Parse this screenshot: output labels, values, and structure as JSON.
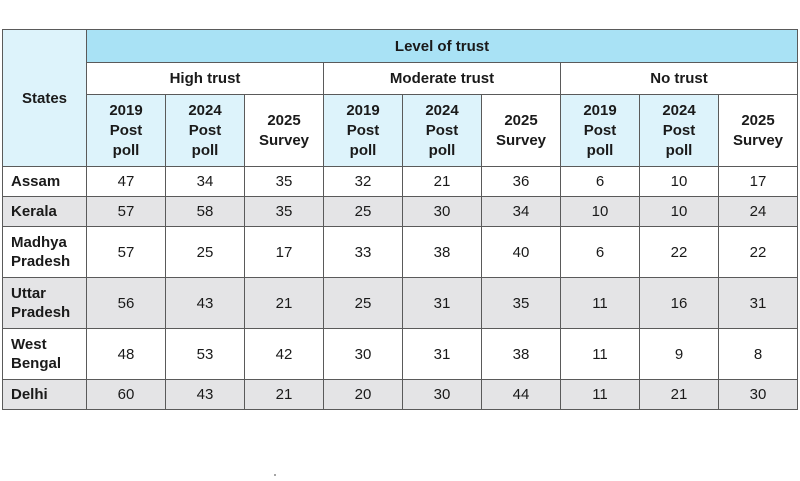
{
  "table": {
    "corner_header": "States",
    "title": "Level of trust",
    "groups": [
      "High trust",
      "Moderate trust",
      "No trust"
    ],
    "subheaders": [
      [
        "2019",
        "Post",
        "poll"
      ],
      [
        "2024",
        "Post",
        "poll"
      ],
      [
        "2025",
        "Survey"
      ]
    ],
    "rows": [
      {
        "state": [
          "Assam"
        ],
        "values": [
          "47",
          "34",
          "35",
          "32",
          "21",
          "36",
          "6",
          "10",
          "17"
        ]
      },
      {
        "state": [
          "Kerala"
        ],
        "values": [
          "57",
          "58",
          "35",
          "25",
          "30",
          "34",
          "10",
          "10",
          "24"
        ]
      },
      {
        "state": [
          "Madhya",
          "Pradesh"
        ],
        "values": [
          "57",
          "25",
          "17",
          "33",
          "38",
          "40",
          "6",
          "22",
          "22"
        ]
      },
      {
        "state": [
          "Uttar",
          "Pradesh"
        ],
        "values": [
          "56",
          "43",
          "21",
          "25",
          "31",
          "35",
          "11",
          "16",
          "31"
        ]
      },
      {
        "state": [
          "West",
          "Bengal"
        ],
        "values": [
          "48",
          "53",
          "42",
          "30",
          "31",
          "38",
          "11",
          "9",
          "8"
        ]
      },
      {
        "state": [
          "Delhi"
        ],
        "values": [
          "60",
          "43",
          "21",
          "20",
          "30",
          "44",
          "11",
          "21",
          "30"
        ]
      }
    ]
  }
}
